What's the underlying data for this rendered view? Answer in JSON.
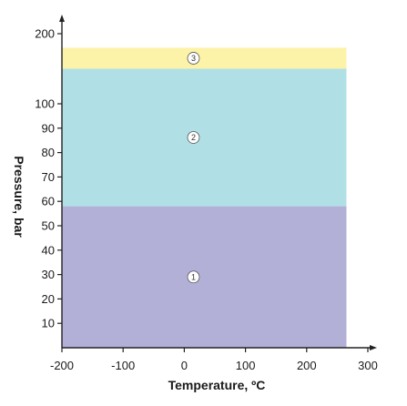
{
  "chart_data": {
    "type": "area",
    "title": "",
    "xlabel": "Temperature, ºC",
    "ylabel": "Pressure, bar",
    "xlim": [
      -200,
      300
    ],
    "x_ticks": [
      -200,
      -100,
      0,
      100,
      200,
      300
    ],
    "y_ticks": [
      10,
      20,
      30,
      40,
      50,
      60,
      70,
      80,
      90,
      100,
      200
    ],
    "y_scale": "segmented: linear 0-100, compressed above 100",
    "grid": false,
    "zones": [
      {
        "label": "1",
        "x_range": [
          -200,
          265
        ],
        "y_range": [
          0,
          58
        ],
        "color": "#b3b0d8"
      },
      {
        "label": "2",
        "x_range": [
          -200,
          265
        ],
        "y_range": [
          58,
          150
        ],
        "color": "#b0e0e6"
      },
      {
        "label": "3",
        "x_range": [
          -200,
          265
        ],
        "y_range": [
          150,
          180
        ],
        "color": "#fdf3a8"
      }
    ],
    "colors": {
      "axis": "#222222",
      "label_circle": "#ffffff"
    }
  }
}
